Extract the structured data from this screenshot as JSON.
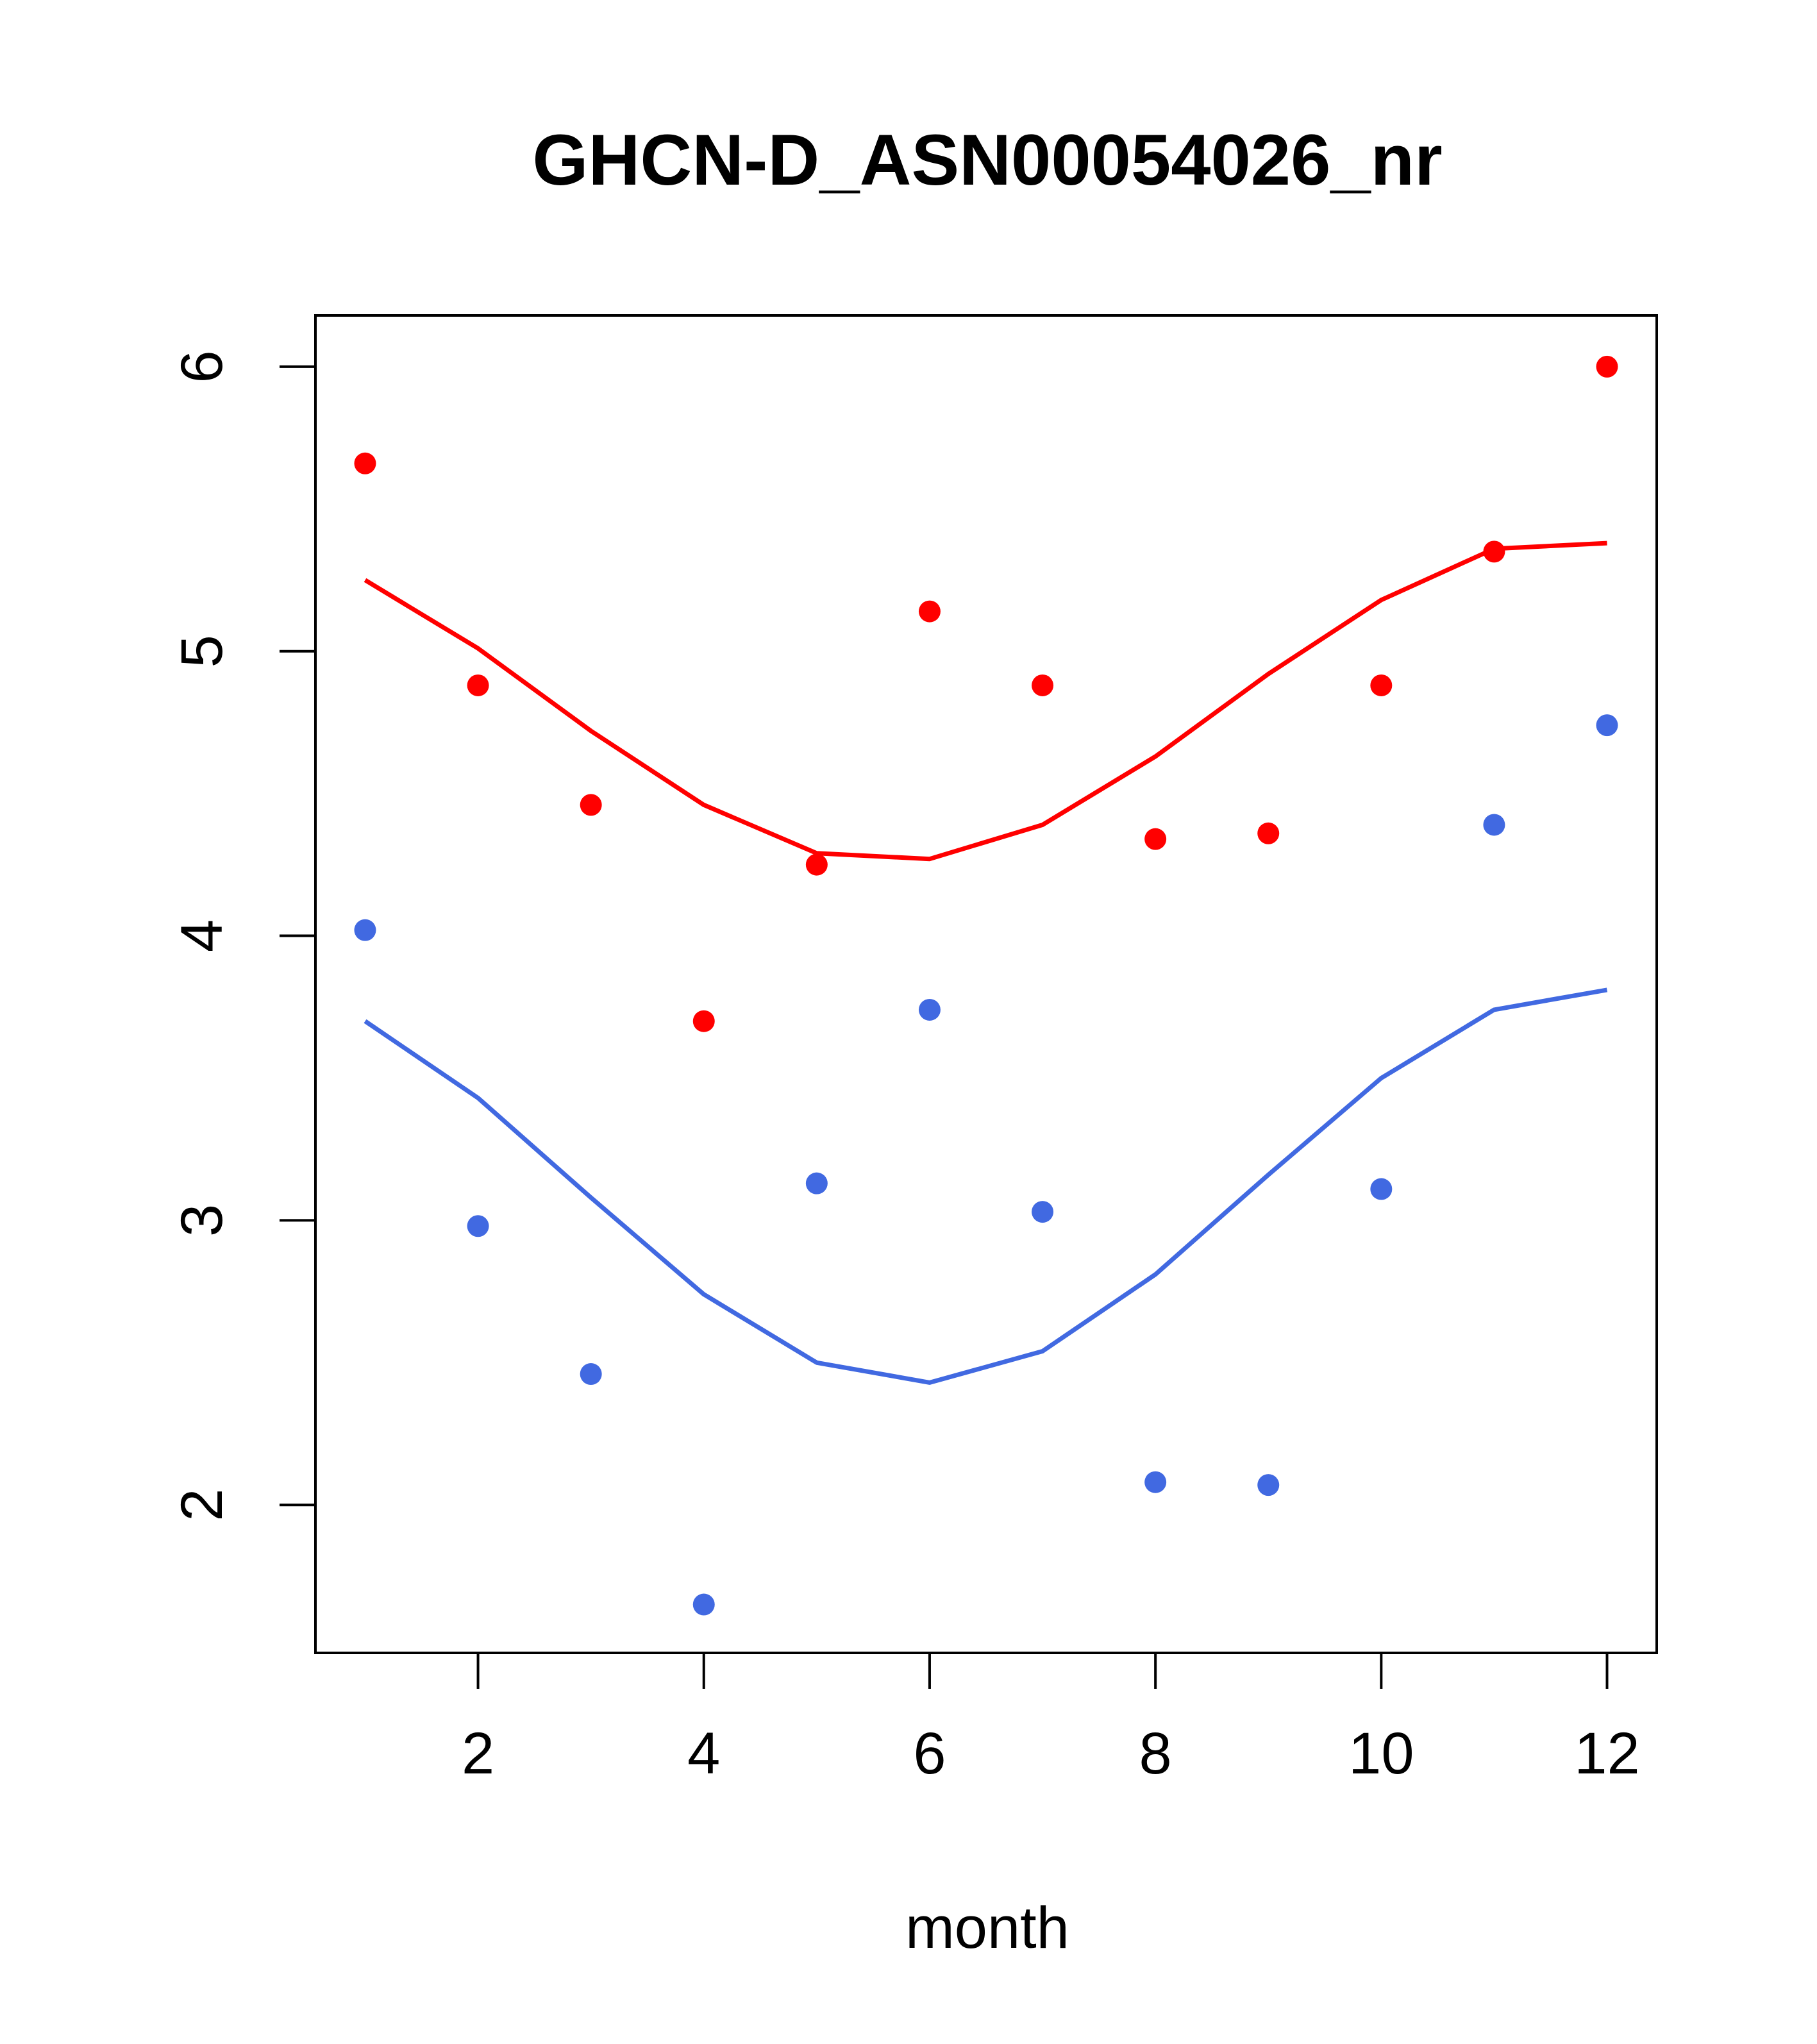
{
  "chart_data": {
    "type": "scatter",
    "title": "GHCN-D_ASN00054026_nr",
    "xlabel": "month",
    "ylabel": "",
    "xlim": [
      0.56,
      12.44
    ],
    "ylim": [
      1.48,
      6.18
    ],
    "x_ticks": [
      2,
      4,
      6,
      8,
      10,
      12
    ],
    "y_ticks": [
      2,
      3,
      4,
      5,
      6
    ],
    "grid": false,
    "legend": "none",
    "series": [
      {
        "color": "#ff0000",
        "points": {
          "x": [
            1,
            2,
            3,
            4,
            5,
            6,
            7,
            8,
            9,
            10,
            11,
            12
          ],
          "y": [
            5.66,
            4.88,
            4.46,
            3.7,
            4.25,
            5.14,
            4.88,
            4.34,
            4.36,
            4.88,
            5.35,
            6.0
          ]
        },
        "line": {
          "x": [
            1,
            2,
            3,
            4,
            5,
            6,
            7,
            8,
            9,
            10,
            11,
            12
          ],
          "y": [
            5.25,
            5.01,
            4.72,
            4.46,
            4.29,
            4.27,
            4.39,
            4.63,
            4.92,
            5.18,
            5.36,
            5.38
          ]
        }
      },
      {
        "color": "#4169e1",
        "points": {
          "x": [
            1,
            2,
            3,
            4,
            5,
            6,
            7,
            8,
            9,
            10,
            11,
            12
          ],
          "y": [
            4.02,
            2.98,
            2.46,
            1.65,
            3.13,
            3.74,
            3.03,
            2.08,
            2.07,
            3.11,
            4.39,
            4.74
          ]
        },
        "line": {
          "x": [
            1,
            2,
            3,
            4,
            5,
            6,
            7,
            8,
            9,
            10,
            11,
            12
          ],
          "y": [
            3.7,
            3.43,
            3.08,
            2.74,
            2.5,
            2.43,
            2.54,
            2.81,
            3.16,
            3.5,
            3.74,
            3.81
          ]
        }
      }
    ]
  }
}
